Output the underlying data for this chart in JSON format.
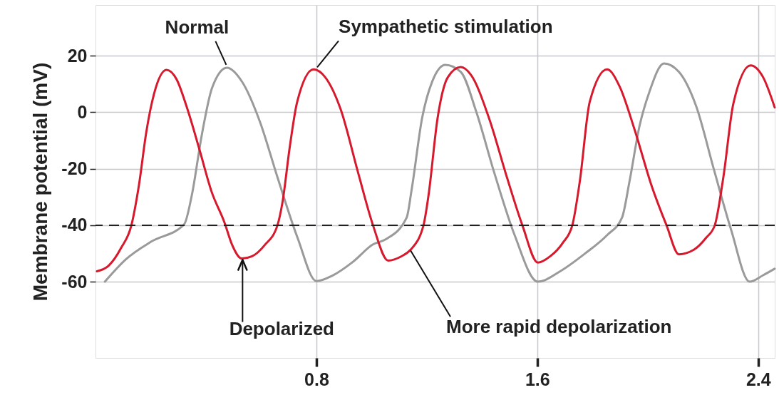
{
  "chart_data": {
    "type": "line",
    "ylabel": "Membrane potential (mV)",
    "xlim": [
      0,
      2.46
    ],
    "xticks": [
      0.8,
      1.6,
      2.4
    ],
    "ylim": [
      -87,
      38
    ],
    "yticks": [
      20,
      0,
      -20,
      -40,
      -60
    ],
    "grid": true,
    "marker": "none",
    "line_style": "solid",
    "series": [
      {
        "color": "#9a9a9a",
        "x": [
          0.034,
          0.111,
          0.202,
          0.321,
          0.349,
          0.385,
          0.422,
          0.476,
          0.531,
          0.595,
          0.659,
          0.732,
          0.8,
          0.859,
          0.932,
          1.005,
          1.053,
          1.127,
          1.145,
          1.183,
          1.22,
          1.267,
          1.323,
          1.378,
          1.443,
          1.518,
          1.602,
          1.683,
          1.772,
          1.853,
          1.907,
          1.934,
          1.97,
          2.006,
          2.059,
          2.113,
          2.176,
          2.239,
          2.302,
          2.369,
          2.418,
          2.46
        ],
        "values": [
          -60,
          -52,
          -45.8,
          -39.7,
          -29.3,
          -8,
          8.6,
          15.8,
          10.8,
          -3.2,
          -23,
          -44.5,
          -59.8,
          -57.8,
          -53,
          -46.8,
          -44.9,
          -37.3,
          -27.4,
          -2,
          11,
          16.8,
          14.3,
          0.5,
          -21,
          -43.5,
          -60,
          -56.3,
          -50.1,
          -43.5,
          -37.3,
          -24.5,
          -5,
          7.2,
          17.3,
          14.3,
          2,
          -20,
          -41.6,
          -60,
          -57.7,
          -55.4
        ]
      },
      {
        "color": "#d7192d",
        "x": [
          0.005,
          0.047,
          0.093,
          0.13,
          0.157,
          0.184,
          0.212,
          0.257,
          0.294,
          0.33,
          0.376,
          0.42,
          0.467,
          0.495,
          0.53,
          0.567,
          0.613,
          0.659,
          0.677,
          0.704,
          0.73,
          0.79,
          0.832,
          0.887,
          0.95,
          1.005,
          1.06,
          1.108,
          1.141,
          1.188,
          1.206,
          1.239,
          1.276,
          1.323,
          1.36,
          1.425,
          1.49,
          1.546,
          1.602,
          1.647,
          1.692,
          1.727,
          1.754,
          1.79,
          1.853,
          1.898,
          1.952,
          2.014,
          2.068,
          2.113,
          2.167,
          2.212,
          2.243,
          2.274,
          2.31,
          2.373,
          2.418,
          2.46
        ],
        "values": [
          -56.3,
          -54.4,
          -48,
          -40,
          -26,
          -7,
          6.5,
          15,
          11.6,
          2,
          -13,
          -28,
          -39,
          -47,
          -51.8,
          -51,
          -47,
          -40,
          -32,
          -12,
          3.5,
          15.2,
          12.4,
          1.3,
          -21,
          -40,
          -52.5,
          -51,
          -48.7,
          -40,
          -29.5,
          -2,
          12.4,
          16,
          13.2,
          -2,
          -23,
          -40,
          -53.2,
          -51,
          -46.3,
          -40,
          -24.5,
          3.7,
          15.2,
          9.2,
          -6,
          -26,
          -40,
          -50.3,
          -48.7,
          -44.4,
          -40,
          -23,
          3,
          16.6,
          12.4,
          1.7
        ]
      }
    ],
    "ref_lines": [
      {
        "axis": "y",
        "value": -40,
        "color": "#222222",
        "line_style": "dashed"
      }
    ],
    "annotations": [
      {
        "text": "Normal",
        "x": 0.476,
        "y": 15.8
      },
      {
        "text": "Sympathetic stimulation",
        "x": 0.79,
        "y": 15.2
      },
      {
        "text": "Depolarized",
        "x": 0.53,
        "y": -51.8
      },
      {
        "text": "More rapid depolarization",
        "x": 1.141,
        "y": -48.7
      }
    ]
  }
}
